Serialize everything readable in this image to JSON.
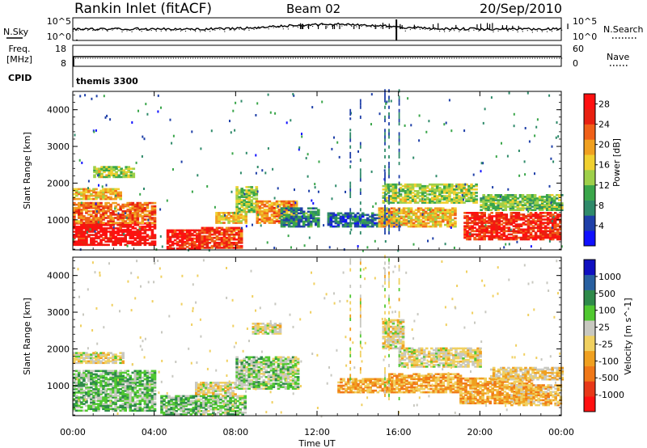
{
  "header": {
    "station": "Rankin Inlet (fitACF)",
    "beam": "Beam 02",
    "date": "20/Sep/2010"
  },
  "noise_panel": {
    "left_label": "N.Sky",
    "right_label": "N.Search",
    "ticks_left": [
      "10^5",
      "10^0"
    ],
    "ticks_right": [
      "10^5",
      "10^0"
    ]
  },
  "freq_panel": {
    "left_label_line1": "Freq.",
    "left_label_line2": "[MHz]",
    "left_ticks": [
      "18",
      "8"
    ],
    "right_label": "Nave",
    "right_ticks": [
      "60",
      "0"
    ]
  },
  "cpid_panel": {
    "label": "CPID",
    "value": "themis 3300"
  },
  "time_axis": {
    "title": "Time UT",
    "ticks": [
      "00:00",
      "04:00",
      "08:00",
      "12:00",
      "16:00",
      "20:00",
      "00:00"
    ]
  },
  "chart_data": [
    {
      "type": "heatmap",
      "title": "",
      "xlabel": "",
      "ylabel": "Slant Range [km]",
      "xlim": [
        0,
        24
      ],
      "ylim": [
        180,
        4500
      ],
      "yticks": [
        "1000",
        "2000",
        "3000",
        "4000"
      ],
      "colorbar": {
        "label": "Power [dB]",
        "ticks": [
          "4",
          "8",
          "12",
          "16",
          "20",
          "24",
          "28"
        ],
        "range": [
          0,
          30
        ],
        "colors": [
          "#1010ff",
          "#1e3fa8",
          "#2f8a6a",
          "#3aa64a",
          "#9ed04a",
          "#f0d030",
          "#f0a020",
          "#f06018",
          "#e82010",
          "#ff1010"
        ]
      },
      "regions": [
        {
          "t0": 0.0,
          "t1": 4.0,
          "r0": 300,
          "r1": 900,
          "v": 28
        },
        {
          "t0": 0.0,
          "t1": 4.0,
          "r0": 900,
          "r1": 1450,
          "v": 22
        },
        {
          "t0": 0.0,
          "t1": 2.3,
          "r0": 1550,
          "r1": 1850,
          "v": 18
        },
        {
          "t0": 1.0,
          "t1": 3.0,
          "r0": 2150,
          "r1": 2450,
          "v": 14
        },
        {
          "t0": 4.6,
          "t1": 6.2,
          "r0": 200,
          "r1": 700,
          "v": 27
        },
        {
          "t0": 6.3,
          "t1": 8.3,
          "r0": 220,
          "r1": 800,
          "v": 24
        },
        {
          "t0": 7.0,
          "t1": 8.5,
          "r0": 900,
          "r1": 1200,
          "v": 18
        },
        {
          "t0": 8.0,
          "t1": 9.0,
          "r0": 1200,
          "r1": 1900,
          "v": 14
        },
        {
          "t0": 9.0,
          "t1": 11.0,
          "r0": 900,
          "r1": 1500,
          "v": 20
        },
        {
          "t0": 10.2,
          "t1": 12.0,
          "r0": 800,
          "r1": 1300,
          "v": 8
        },
        {
          "t0": 12.5,
          "t1": 16.0,
          "r0": 800,
          "r1": 1200,
          "v": 6
        },
        {
          "t0": 15.0,
          "t1": 18.8,
          "r0": 800,
          "r1": 1300,
          "v": 18
        },
        {
          "t0": 15.2,
          "t1": 19.8,
          "r0": 1450,
          "r1": 1950,
          "v": 14
        },
        {
          "t0": 19.2,
          "t1": 24.0,
          "r0": 450,
          "r1": 1200,
          "v": 26
        },
        {
          "t0": 20.0,
          "t1": 24.0,
          "r0": 1250,
          "r1": 1700,
          "v": 12
        }
      ]
    },
    {
      "type": "heatmap",
      "title": "",
      "xlabel": "Time UT",
      "ylabel": "Slant Range [km]",
      "xlim": [
        0,
        24
      ],
      "ylim": [
        180,
        4500
      ],
      "yticks": [
        "1000",
        "2000",
        "3000",
        "4000"
      ],
      "colorbar": {
        "label": "Velocity [m s^-1]",
        "ticks": [
          "1000",
          "500",
          "100",
          "25",
          "-25",
          "-100",
          "-500",
          "-1000"
        ],
        "range": [
          -1000,
          1000
        ],
        "colors": [
          "#ff1010",
          "#e83818",
          "#f07818",
          "#f0a020",
          "#f0d060",
          "#c8c8c0",
          "#50c830",
          "#2e8a4a",
          "#2860a0",
          "#1010c0"
        ]
      },
      "regions": [
        {
          "t0": 0.0,
          "t1": 4.0,
          "r0": 300,
          "r1": 1400,
          "v": 300
        },
        {
          "t0": 0.0,
          "t1": 2.5,
          "r0": 1600,
          "r1": 1900,
          "v": 0
        },
        {
          "t0": 4.3,
          "t1": 6.0,
          "r0": 200,
          "r1": 700,
          "v": 300
        },
        {
          "t0": 6.0,
          "t1": 8.0,
          "r0": 700,
          "r1": 1100,
          "v": 0
        },
        {
          "t0": 6.0,
          "t1": 8.5,
          "r0": 200,
          "r1": 700,
          "v": 250
        },
        {
          "t0": 8.0,
          "t1": 11.0,
          "r0": 900,
          "r1": 1800,
          "v": 200
        },
        {
          "t0": 8.8,
          "t1": 10.2,
          "r0": 2400,
          "r1": 2700,
          "v": 0
        },
        {
          "t0": 13.0,
          "t1": 15.5,
          "r0": 800,
          "r1": 1200,
          "v": -300
        },
        {
          "t0": 15.2,
          "t1": 16.2,
          "r0": 2000,
          "r1": 2800,
          "v": 0
        },
        {
          "t0": 15.5,
          "t1": 19.0,
          "r0": 800,
          "r1": 1300,
          "v": -300
        },
        {
          "t0": 16.0,
          "t1": 20.0,
          "r0": 1500,
          "r1": 2000,
          "v": 0
        },
        {
          "t0": 19.0,
          "t1": 22.5,
          "r0": 500,
          "r1": 1200,
          "v": -300
        },
        {
          "t0": 21.5,
          "t1": 24.0,
          "r0": 450,
          "r1": 1000,
          "v": -200
        },
        {
          "t0": 20.5,
          "t1": 24.0,
          "r0": 1150,
          "r1": 1500,
          "v": -100
        }
      ]
    }
  ]
}
